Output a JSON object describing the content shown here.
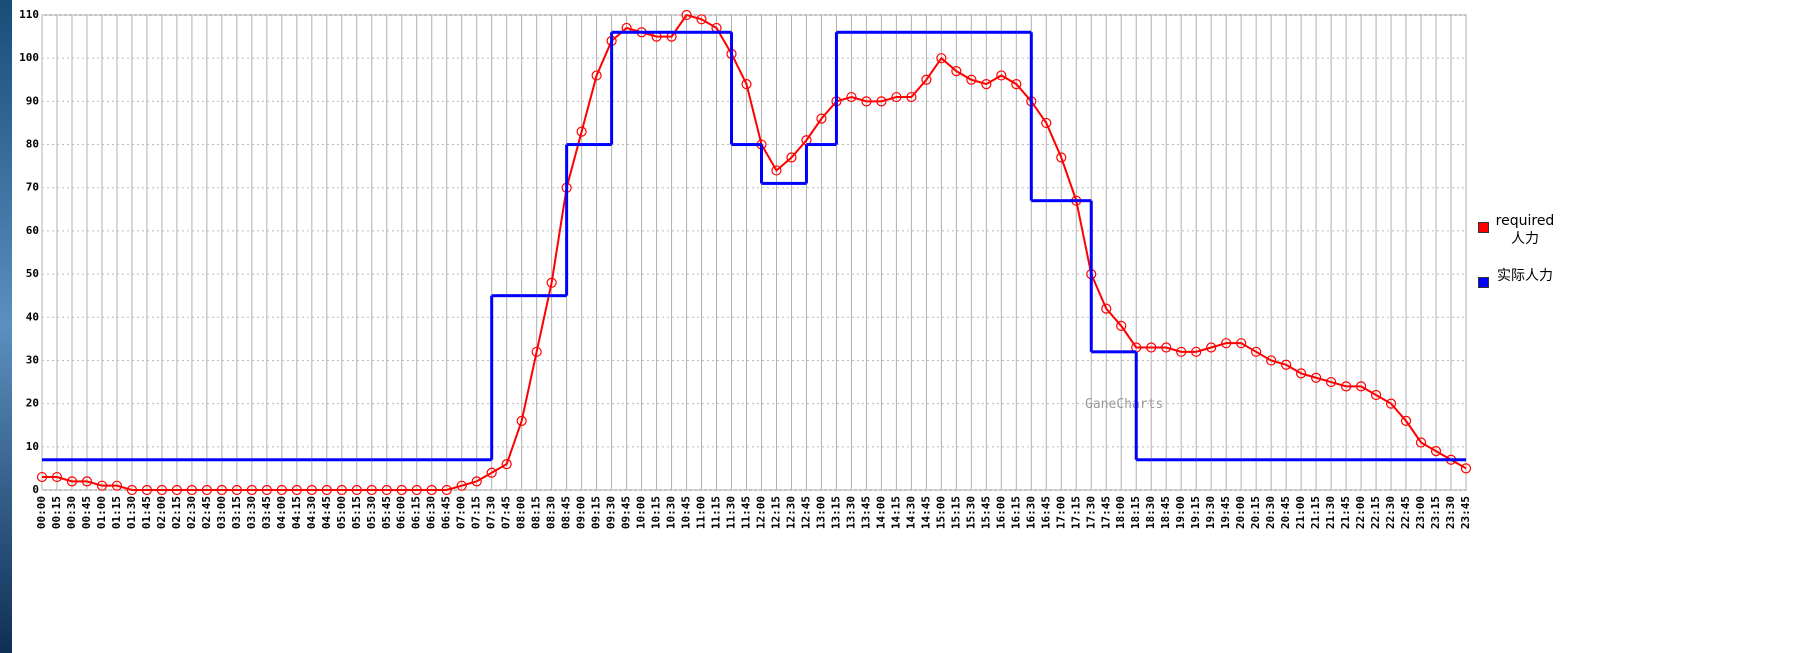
{
  "chart_data": {
    "type": "line",
    "categories": [
      "00:00",
      "00:15",
      "00:30",
      "00:45",
      "01:00",
      "01:15",
      "01:30",
      "01:45",
      "02:00",
      "02:15",
      "02:30",
      "02:45",
      "03:00",
      "03:15",
      "03:30",
      "03:45",
      "04:00",
      "04:15",
      "04:30",
      "04:45",
      "05:00",
      "05:15",
      "05:30",
      "05:45",
      "06:00",
      "06:15",
      "06:30",
      "06:45",
      "07:00",
      "07:15",
      "07:30",
      "07:45",
      "08:00",
      "08:15",
      "08:30",
      "08:45",
      "09:00",
      "09:15",
      "09:30",
      "09:45",
      "10:00",
      "10:15",
      "10:30",
      "10:45",
      "11:00",
      "11:15",
      "11:30",
      "11:45",
      "12:00",
      "12:15",
      "12:30",
      "12:45",
      "13:00",
      "13:15",
      "13:30",
      "13:45",
      "14:00",
      "14:15",
      "14:30",
      "14:45",
      "15:00",
      "15:15",
      "15:30",
      "15:45",
      "16:00",
      "16:15",
      "16:30",
      "16:45",
      "17:00",
      "17:15",
      "17:30",
      "17:45",
      "18:00",
      "18:15",
      "18:30",
      "18:45",
      "19:00",
      "19:15",
      "19:30",
      "19:45",
      "20:00",
      "20:15",
      "20:30",
      "20:45",
      "21:00",
      "21:15",
      "21:30",
      "21:45",
      "22:00",
      "22:15",
      "22:30",
      "22:45",
      "23:00",
      "23:15",
      "23:30",
      "23:45"
    ],
    "series": [
      {
        "name": "required 人力",
        "color": "#ff0000",
        "markers": true,
        "step": false,
        "values": [
          3,
          3,
          2,
          2,
          1,
          1,
          0,
          0,
          0,
          0,
          0,
          0,
          0,
          0,
          0,
          0,
          0,
          0,
          0,
          0,
          0,
          0,
          0,
          0,
          0,
          0,
          0,
          0,
          1,
          2,
          4,
          6,
          16,
          32,
          48,
          70,
          83,
          96,
          104,
          107,
          106,
          105,
          105,
          110,
          109,
          107,
          101,
          94,
          80,
          74,
          77,
          81,
          86,
          90,
          91,
          90,
          90,
          91,
          91,
          95,
          100,
          97,
          95,
          94,
          96,
          94,
          90,
          85,
          77,
          67,
          50,
          42,
          38,
          33,
          33,
          33,
          32,
          32,
          33,
          34,
          34,
          32,
          30,
          29,
          27,
          26,
          25,
          24,
          24,
          22,
          20,
          16,
          11,
          9,
          7,
          5
        ]
      },
      {
        "name": "实际人力",
        "color": "#0000ff",
        "markers": false,
        "step": true,
        "values": [
          7,
          7,
          7,
          7,
          7,
          7,
          7,
          7,
          7,
          7,
          7,
          7,
          7,
          7,
          7,
          7,
          7,
          7,
          7,
          7,
          7,
          7,
          7,
          7,
          7,
          7,
          7,
          7,
          7,
          7,
          45,
          45,
          45,
          45,
          45,
          80,
          80,
          80,
          106,
          106,
          106,
          106,
          106,
          106,
          106,
          106,
          80,
          80,
          71,
          71,
          71,
          80,
          80,
          106,
          106,
          106,
          106,
          106,
          106,
          106,
          106,
          106,
          106,
          106,
          106,
          106,
          67,
          67,
          67,
          67,
          32,
          32,
          32,
          7,
          7,
          7,
          7,
          7,
          7,
          7,
          7,
          7,
          7,
          7,
          7,
          7,
          7,
          7,
          7,
          7,
          7,
          7,
          7,
          7,
          7,
          7
        ]
      }
    ],
    "watermark": "GaneCharts",
    "ylim": [
      0,
      110
    ],
    "yticks": [
      0,
      10,
      20,
      30,
      40,
      50,
      60,
      70,
      80,
      90,
      100,
      110
    ],
    "grid": true,
    "legend": "right"
  }
}
